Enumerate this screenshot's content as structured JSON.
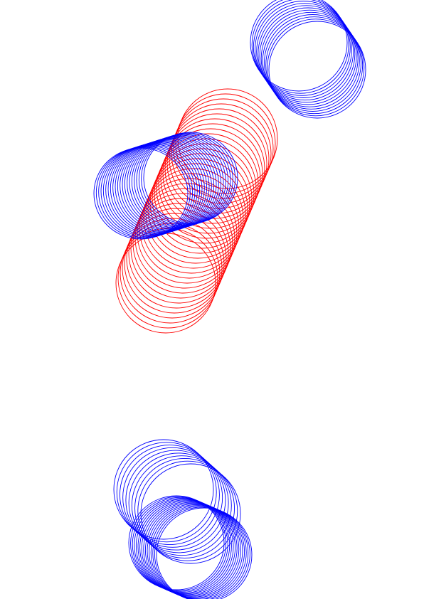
{
  "colors": {
    "background": "#ffffff",
    "blue": "#0000ff",
    "red": "#ff0000"
  },
  "shapes": [
    {
      "name": "top-right-blue-ring-stack",
      "color": "blue",
      "ring_count": 13
    },
    {
      "name": "center-red-ring-stack",
      "color": "red",
      "ring_count": 30
    },
    {
      "name": "center-left-blue-ring-stack",
      "color": "blue",
      "ring_count": 22
    },
    {
      "name": "bottom-upper-blue-ring-stack",
      "color": "blue",
      "ring_count": 10
    },
    {
      "name": "bottom-lower-blue-ring-stack",
      "color": "blue",
      "ring_count": 16
    }
  ]
}
